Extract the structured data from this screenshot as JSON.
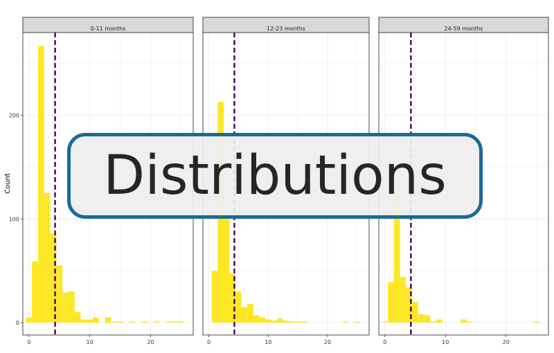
{
  "chart_data": {
    "type": "histogram",
    "ylabel": "Count",
    "xlim": [
      -1,
      27
    ],
    "ylim": [
      -12,
      280
    ],
    "x_ticks": [
      0,
      10,
      20
    ],
    "y_ticks": [
      0,
      100,
      200
    ],
    "bin_width": 1,
    "bar_color": "#fde725",
    "reference_line": {
      "x": 4.3,
      "color": "#440154",
      "style": "dashed"
    },
    "grid": true,
    "facets": [
      {
        "label": "0-11 months",
        "bins": [
          {
            "x": 0,
            "y": 5
          },
          {
            "x": 1,
            "y": 59
          },
          {
            "x": 2,
            "y": 267
          },
          {
            "x": 3,
            "y": 125
          },
          {
            "x": 4,
            "y": 86
          },
          {
            "x": 5,
            "y": 55
          },
          {
            "x": 6,
            "y": 29
          },
          {
            "x": 7,
            "y": 30
          },
          {
            "x": 8,
            "y": 10
          },
          {
            "x": 9,
            "y": 3
          },
          {
            "x": 10,
            "y": 3
          },
          {
            "x": 11,
            "y": 5
          },
          {
            "x": 12,
            "y": 0
          },
          {
            "x": 13,
            "y": 5
          },
          {
            "x": 14,
            "y": 1
          },
          {
            "x": 15,
            "y": 1
          },
          {
            "x": 16,
            "y": 0
          },
          {
            "x": 17,
            "y": 1
          },
          {
            "x": 18,
            "y": 0
          },
          {
            "x": 19,
            "y": 1
          },
          {
            "x": 20,
            "y": 0
          },
          {
            "x": 21,
            "y": 1
          },
          {
            "x": 22,
            "y": 0
          },
          {
            "x": 23,
            "y": 1
          },
          {
            "x": 24,
            "y": 1
          },
          {
            "x": 25,
            "y": 1
          }
        ]
      },
      {
        "label": "12-23 months",
        "bins": [
          {
            "x": 0,
            "y": 0
          },
          {
            "x": 1,
            "y": 50
          },
          {
            "x": 2,
            "y": 213
          },
          {
            "x": 3,
            "y": 100
          },
          {
            "x": 4,
            "y": 47
          },
          {
            "x": 5,
            "y": 30
          },
          {
            "x": 6,
            "y": 15
          },
          {
            "x": 7,
            "y": 18
          },
          {
            "x": 8,
            "y": 7
          },
          {
            "x": 9,
            "y": 5
          },
          {
            "x": 10,
            "y": 3
          },
          {
            "x": 11,
            "y": 2
          },
          {
            "x": 12,
            "y": 4
          },
          {
            "x": 13,
            "y": 2
          },
          {
            "x": 14,
            "y": 1
          },
          {
            "x": 15,
            "y": 1
          },
          {
            "x": 16,
            "y": 1
          },
          {
            "x": 17,
            "y": 0
          },
          {
            "x": 18,
            "y": 0
          },
          {
            "x": 19,
            "y": 0
          },
          {
            "x": 20,
            "y": 0
          },
          {
            "x": 21,
            "y": 0
          },
          {
            "x": 22,
            "y": 0
          },
          {
            "x": 23,
            "y": 1
          },
          {
            "x": 24,
            "y": 0
          },
          {
            "x": 25,
            "y": 1
          }
        ]
      },
      {
        "label": "24-59 months",
        "bins": [
          {
            "x": 0,
            "y": 1
          },
          {
            "x": 1,
            "y": 39
          },
          {
            "x": 2,
            "y": 130
          },
          {
            "x": 3,
            "y": 44
          },
          {
            "x": 4,
            "y": 34
          },
          {
            "x": 5,
            "y": 20
          },
          {
            "x": 6,
            "y": 8
          },
          {
            "x": 7,
            "y": 7
          },
          {
            "x": 8,
            "y": 1
          },
          {
            "x": 9,
            "y": 3
          },
          {
            "x": 10,
            "y": 0
          },
          {
            "x": 11,
            "y": 0
          },
          {
            "x": 12,
            "y": 0
          },
          {
            "x": 13,
            "y": 3
          },
          {
            "x": 14,
            "y": 1
          },
          {
            "x": 15,
            "y": 0
          },
          {
            "x": 16,
            "y": 0
          },
          {
            "x": 17,
            "y": 0
          },
          {
            "x": 18,
            "y": 0
          },
          {
            "x": 19,
            "y": 0
          },
          {
            "x": 20,
            "y": 0
          },
          {
            "x": 21,
            "y": 0
          },
          {
            "x": 22,
            "y": 0
          },
          {
            "x": 23,
            "y": 0
          },
          {
            "x": 24,
            "y": 0
          },
          {
            "x": 25,
            "y": 1
          }
        ]
      }
    ]
  },
  "banner": {
    "text": "Distributions"
  },
  "colors": {
    "strip_bg": "#d9d9d9",
    "panel_border": "#333333",
    "grid": "#ebebeb",
    "banner_border": "#1a6b96",
    "banner_bg": "#eeeeee"
  }
}
